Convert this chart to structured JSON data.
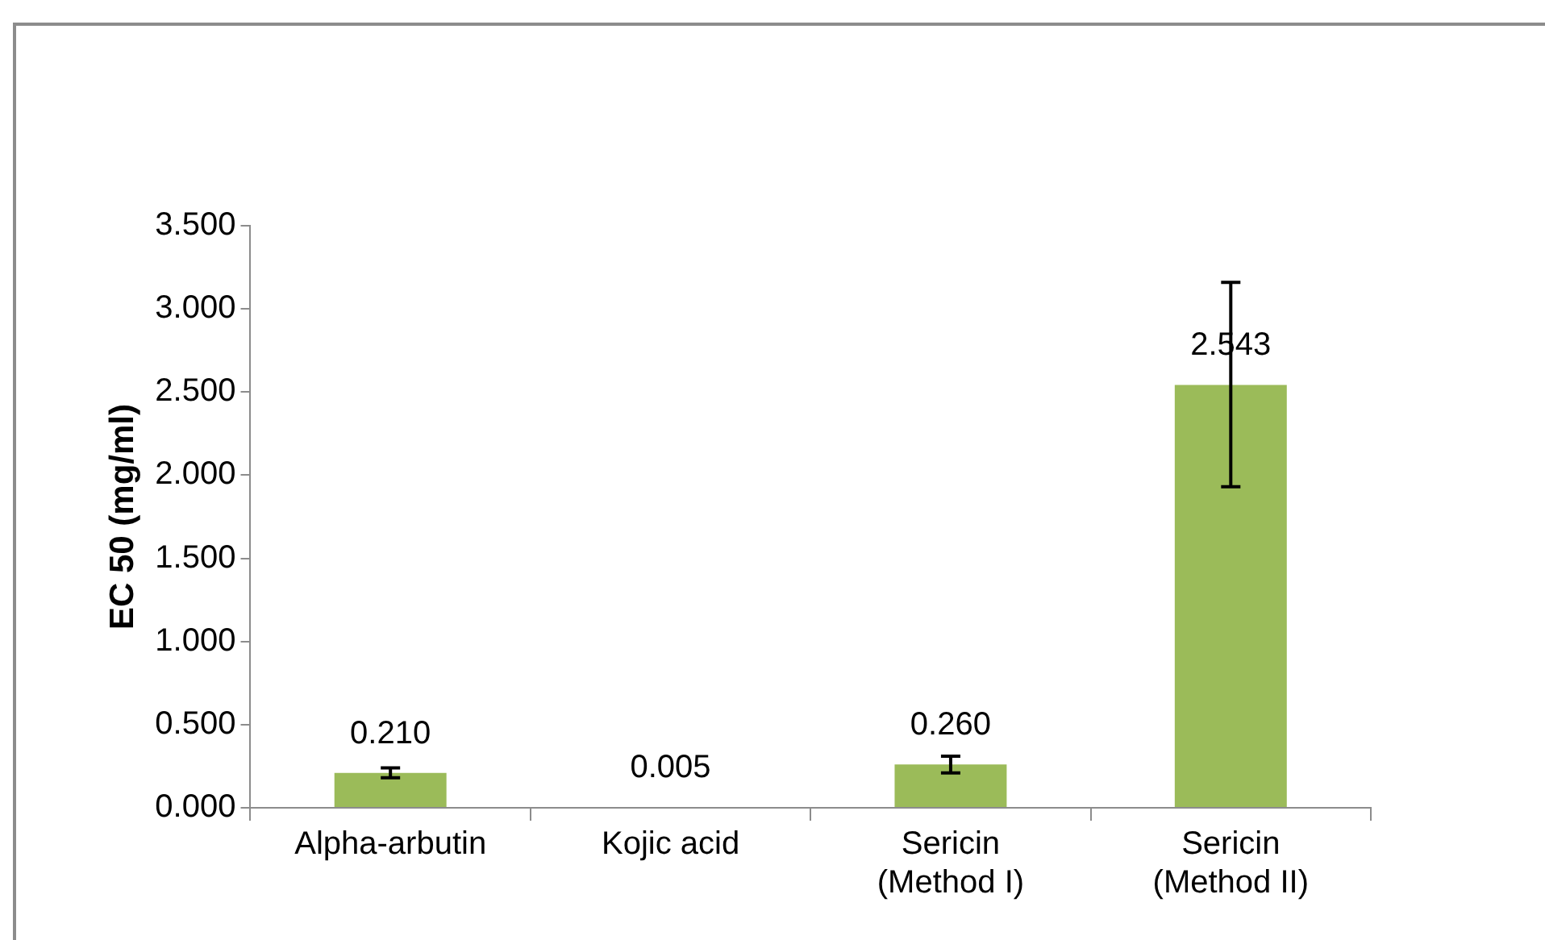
{
  "chart_data": {
    "type": "bar",
    "ylabel": "EC 50 (mg/ml)",
    "categories": [
      "Alpha-arbutin",
      "Kojic acid",
      "Sericin\n(Method I)",
      "Sericin\n(Method II)"
    ],
    "values": [
      0.21,
      0.005,
      0.26,
      2.543
    ],
    "errors": [
      0.03,
      null,
      0.05,
      [
        1.93,
        3.16
      ]
    ],
    "value_labels": [
      "0.210",
      "0.005",
      "0.260",
      "2.543"
    ],
    "color": "#9bbb59",
    "ylim": [
      0,
      3.5
    ],
    "yticks": [
      {
        "value": 0,
        "label": "0.000"
      },
      {
        "value": 0.5,
        "label": "0.500"
      },
      {
        "value": 1,
        "label": "1.000"
      },
      {
        "value": 1.5,
        "label": "1.500"
      },
      {
        "value": 2,
        "label": "2.000"
      },
      {
        "value": 2.5,
        "label": "2.500"
      },
      {
        "value": 3,
        "label": "3.000"
      },
      {
        "value": 3.5,
        "label": "3.500"
      }
    ],
    "grid": false,
    "legend": false
  }
}
